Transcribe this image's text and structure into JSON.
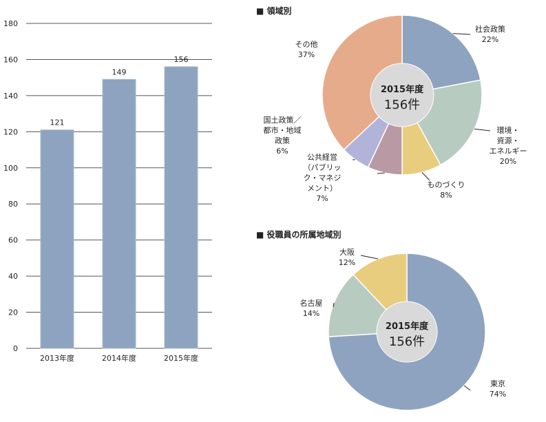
{
  "chart_data": [
    {
      "type": "bar",
      "categories": [
        "2013年度",
        "2014年度",
        "2015年度"
      ],
      "values": [
        121,
        149,
        156
      ],
      "value_labels": [
        "121",
        "149",
        "156"
      ],
      "ylim": [
        0,
        180
      ],
      "yticks": [
        "0",
        "20",
        "40",
        "60",
        "80",
        "100",
        "120",
        "140",
        "160",
        "180"
      ],
      "grid": true,
      "color": "#8ea3bf"
    },
    {
      "type": "pie",
      "title": "■ 領域別",
      "center_year": "2015年度",
      "center_count": "156件",
      "slices": [
        {
          "label": "社会政策",
          "percent": "22%",
          "value": 22,
          "color": "#8ea3bf"
        },
        {
          "label": "環境・資源・エネルギー",
          "label_lines": [
            "環境・",
            "資源・",
            "エネルギー"
          ],
          "percent": "20%",
          "value": 20,
          "color": "#b8cbc0"
        },
        {
          "label": "ものづくり",
          "percent": "8%",
          "value": 8,
          "color": "#e8cd7e"
        },
        {
          "label": "公共経営（パブリック・マネジメント）",
          "label_lines": [
            "公共経営",
            "（パブリッ",
            "ク・マネジ",
            "メント）"
          ],
          "percent": "7%",
          "value": 7,
          "color": "#b999a4"
        },
        {
          "label": "国土政策／都市・地域政策",
          "label_lines": [
            "国土政策／",
            "都市・地域",
            "政策"
          ],
          "percent": "6%",
          "value": 6,
          "color": "#b2b3d9"
        },
        {
          "label": "その他",
          "percent": "37%",
          "value": 37,
          "color": "#e6ab8b"
        }
      ]
    },
    {
      "type": "pie",
      "title": "■ 役職員の所属地域別",
      "center_year": "2015年度",
      "center_count": "156件",
      "slices": [
        {
          "label": "東京",
          "percent": "74%",
          "value": 74,
          "color": "#8ea3bf"
        },
        {
          "label": "名古屋",
          "percent": "14%",
          "value": 14,
          "color": "#b8cbc0"
        },
        {
          "label": "大阪",
          "percent": "12%",
          "value": 12,
          "color": "#e8cd7e"
        }
      ]
    }
  ]
}
